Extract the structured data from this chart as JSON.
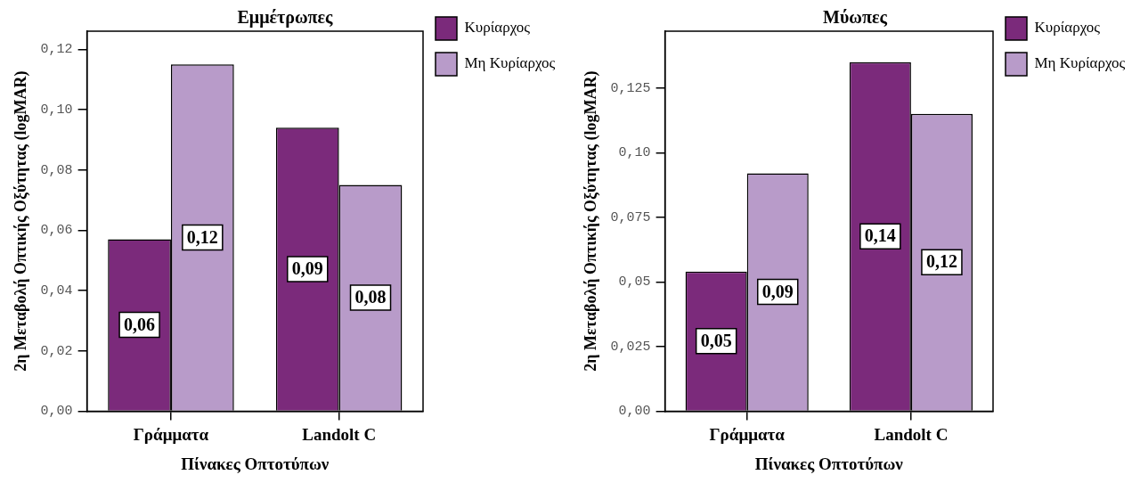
{
  "chart_data": [
    {
      "type": "bar",
      "title": "Εμμέτρωπες",
      "xlabel": "Πίνακες Οπτοτύπων",
      "ylabel": "2η Μεταβολή Οπτικής Οξύτητας (logMAR)",
      "categories": [
        "Γράμματα",
        "Landolt C"
      ],
      "series": [
        {
          "name": "Κυρίαρχος",
          "color": "#7b2a7b",
          "values": [
            0.057,
            0.094
          ],
          "value_labels": [
            "0,06",
            "0,09"
          ]
        },
        {
          "name": "Μη Κυρίαρχος",
          "color": "#b89bc9",
          "values": [
            0.115,
            0.075
          ],
          "value_labels": [
            "0,12",
            "0,08"
          ]
        }
      ],
      "ylim": [
        0,
        0.126
      ],
      "yticks": [
        {
          "value": 0,
          "label": "0,00"
        },
        {
          "value": 0.02,
          "label": "0,02"
        },
        {
          "value": 0.04,
          "label": "0,04"
        },
        {
          "value": 0.06,
          "label": "0,06"
        },
        {
          "value": 0.08,
          "label": "0,08"
        },
        {
          "value": 0.1,
          "label": "0,10"
        },
        {
          "value": 0.12,
          "label": "0,12"
        }
      ],
      "legend": "top right"
    },
    {
      "type": "bar",
      "title": "Μύωπες",
      "xlabel": "Πίνακες Οπτοτύπων",
      "ylabel": "2η Μεταβολή Οπτικής Οξύτητας (logMAR)",
      "categories": [
        "Γράμματα",
        "Landolt C"
      ],
      "series": [
        {
          "name": "Κυρίαρχος",
          "color": "#7b2a7b",
          "values": [
            0.054,
            0.135
          ],
          "value_labels": [
            "0,05",
            "0,14"
          ]
        },
        {
          "name": "Μη Κυρίαρχος",
          "color": "#b89bc9",
          "values": [
            0.092,
            0.115
          ],
          "value_labels": [
            "0,09",
            "0,12"
          ]
        }
      ],
      "ylim": [
        0,
        0.147
      ],
      "yticks": [
        {
          "value": 0,
          "label": "0,00"
        },
        {
          "value": 0.025,
          "label": "0,025"
        },
        {
          "value": 0.05,
          "label": "0,05"
        },
        {
          "value": 0.075,
          "label": "0,075"
        },
        {
          "value": 0.1,
          "label": "0,10"
        },
        {
          "value": 0.125,
          "label": "0,125"
        }
      ],
      "legend": "top right"
    }
  ]
}
